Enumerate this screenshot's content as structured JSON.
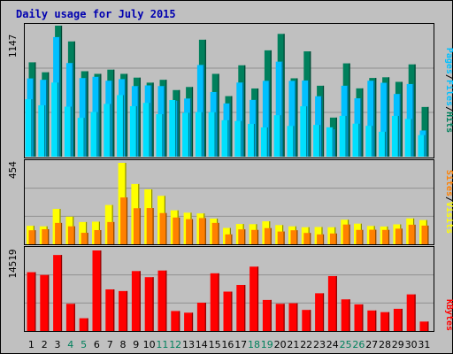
{
  "title": "Daily usage for July 2015",
  "colors": {
    "background": "#c0c0c0",
    "title": "#0000b0",
    "hits": "#00805c",
    "files": "#00c0ff",
    "pages": "#00e0ff",
    "visits": "#ffff00",
    "sites": "#ff8000",
    "kbytes": "#ff0000",
    "weekend_label": "#00805c",
    "weekday_label": "#000000"
  },
  "chart_data": [
    {
      "type": "bar",
      "panel": "top",
      "ytick_label": "1147",
      "ylim": [
        0,
        1147
      ],
      "legend_labels": [
        "Pages",
        "Files",
        "Hits"
      ],
      "categories": [
        "1",
        "2",
        "3",
        "4",
        "5",
        "6",
        "7",
        "8",
        "9",
        "10",
        "11",
        "12",
        "13",
        "14",
        "15",
        "16",
        "17",
        "18",
        "19",
        "20",
        "21",
        "22",
        "23",
        "24",
        "25",
        "26",
        "27",
        "28",
        "29",
        "30",
        "31"
      ],
      "series": [
        {
          "name": "Hits",
          "values": [
            826,
            739,
            1147,
            1009,
            748,
            725,
            762,
            725,
            692,
            648,
            673,
            583,
            610,
            1024,
            725,
            530,
            800,
            597,
            931,
            1075,
            686,
            922,
            621,
            342,
            817,
            598,
            689,
            695,
            655,
            808,
            435
          ]
        },
        {
          "name": "Files",
          "values": [
            685,
            673,
            1047,
            820,
            688,
            699,
            665,
            679,
            618,
            624,
            618,
            488,
            509,
            803,
            566,
            466,
            649,
            497,
            664,
            832,
            664,
            667,
            529,
            238,
            621,
            511,
            665,
            647,
            549,
            636,
            229
          ]
        },
        {
          "name": "Pages",
          "values": [
            503,
            450,
            649,
            438,
            340,
            391,
            462,
            539,
            442,
            471,
            372,
            496,
            384,
            390,
            389,
            319,
            312,
            287,
            256,
            363,
            269,
            441,
            278,
            257,
            357,
            289,
            270,
            218,
            357,
            330,
            189
          ]
        }
      ]
    },
    {
      "type": "bar",
      "panel": "middle",
      "ytick_label": "454",
      "ylim": [
        0,
        454
      ],
      "legend_labels": [
        "Sites",
        "Visits"
      ],
      "categories": [
        "1",
        "2",
        "3",
        "4",
        "5",
        "6",
        "7",
        "8",
        "9",
        "10",
        "11",
        "12",
        "13",
        "14",
        "15",
        "16",
        "17",
        "18",
        "19",
        "20",
        "21",
        "22",
        "23",
        "24",
        "25",
        "26",
        "27",
        "28",
        "29",
        "30",
        "31"
      ],
      "series": [
        {
          "name": "Visits",
          "values": [
            103,
            100,
            197,
            154,
            124,
            126,
            219,
            454,
            336,
            306,
            270,
            189,
            176,
            172,
            143,
            91,
            113,
            112,
            128,
            107,
            100,
            95,
            96,
            95,
            137,
            115,
            102,
            99,
            111,
            144,
            135
          ]
        },
        {
          "name": "Sites",
          "values": [
            78,
            84,
            119,
            100,
            64,
            79,
            124,
            261,
            201,
            202,
            174,
            149,
            140,
            146,
            119,
            55,
            83,
            80,
            90,
            71,
            78,
            63,
            55,
            60,
            110,
            80,
            81,
            80,
            87,
            109,
            104
          ]
        }
      ]
    },
    {
      "type": "bar",
      "panel": "bottom",
      "ytick_label": "14519",
      "ylim": [
        0,
        14519
      ],
      "legend_labels": [
        "KBytes"
      ],
      "categories": [
        "1",
        "2",
        "3",
        "4",
        "5",
        "6",
        "7",
        "8",
        "9",
        "10",
        "11",
        "12",
        "13",
        "14",
        "15",
        "16",
        "17",
        "18",
        "19",
        "20",
        "21",
        "22",
        "23",
        "24",
        "25",
        "26",
        "27",
        "28",
        "29",
        "30",
        "31"
      ],
      "series": [
        {
          "name": "KBytes",
          "values": [
            10600,
            10100,
            13700,
            4900,
            2300,
            14519,
            7500,
            7200,
            10800,
            9700,
            10900,
            3600,
            3300,
            5100,
            10400,
            7100,
            8300,
            11600,
            5600,
            4900,
            5000,
            3800,
            6800,
            9900,
            5700,
            4800,
            3700,
            3400,
            4000,
            6600,
            1700
          ]
        }
      ]
    }
  ]
}
